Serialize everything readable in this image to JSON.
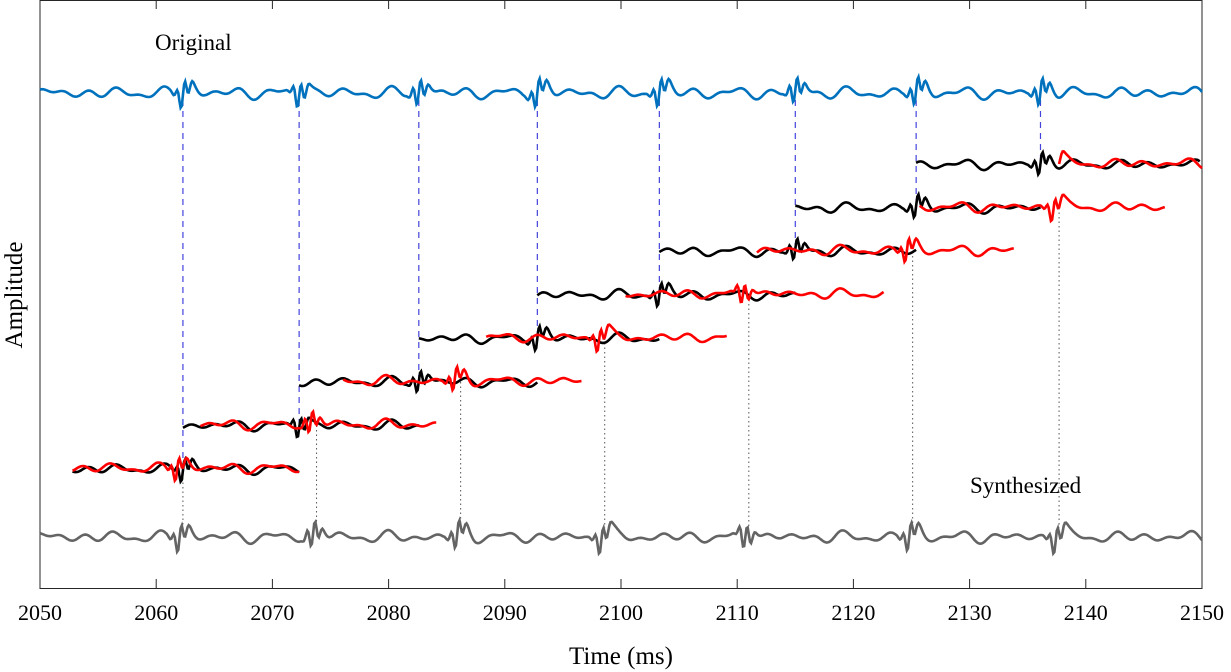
{
  "chart_data": {
    "type": "line",
    "xlabel": "Time (ms)",
    "ylabel": "Amplitude",
    "xlim": [
      2050,
      2150
    ],
    "x_ticks": [
      2050,
      2060,
      2070,
      2080,
      2090,
      2100,
      2110,
      2120,
      2130,
      2140,
      2150
    ],
    "grid": false,
    "legend": "none",
    "annotations": [
      "Original",
      "Synthesized"
    ],
    "original_pitch_marks_ms": [
      2062.3,
      2072.3,
      2082.6,
      2092.8,
      2103.3,
      2115.0,
      2125.4,
      2136.1
    ],
    "synthesized_pitch_marks_ms": [
      2062.3,
      2073.8,
      2086.2,
      2098.6,
      2111.0,
      2125.1,
      2137.7
    ],
    "original_segments_ms": [
      [
        2052.8,
        2072.3
      ],
      [
        2062.3,
        2082.6
      ],
      [
        2072.3,
        2092.8
      ],
      [
        2082.6,
        2103.3
      ],
      [
        2092.8,
        2115.0
      ],
      [
        2103.3,
        2125.4
      ],
      [
        2115.0,
        2136.1
      ],
      [
        2125.4,
        2149.8
      ]
    ],
    "shifted_segments_ms": [
      [
        2052.8,
        2072.3
      ],
      [
        2063.8,
        2084.1
      ],
      [
        2076.1,
        2096.6
      ],
      [
        2088.4,
        2109.1
      ],
      [
        2100.4,
        2122.6
      ],
      [
        2111.7,
        2133.8
      ],
      [
        2125.7,
        2146.8
      ],
      [
        2137.7,
        2150.0
      ]
    ],
    "colors": {
      "original": "#0072BD",
      "synthesized": "#646464",
      "segment": "#000000",
      "shifted_segment": "#FF0000",
      "original_marker": "#4444DD",
      "synth_marker": "#555555"
    }
  }
}
